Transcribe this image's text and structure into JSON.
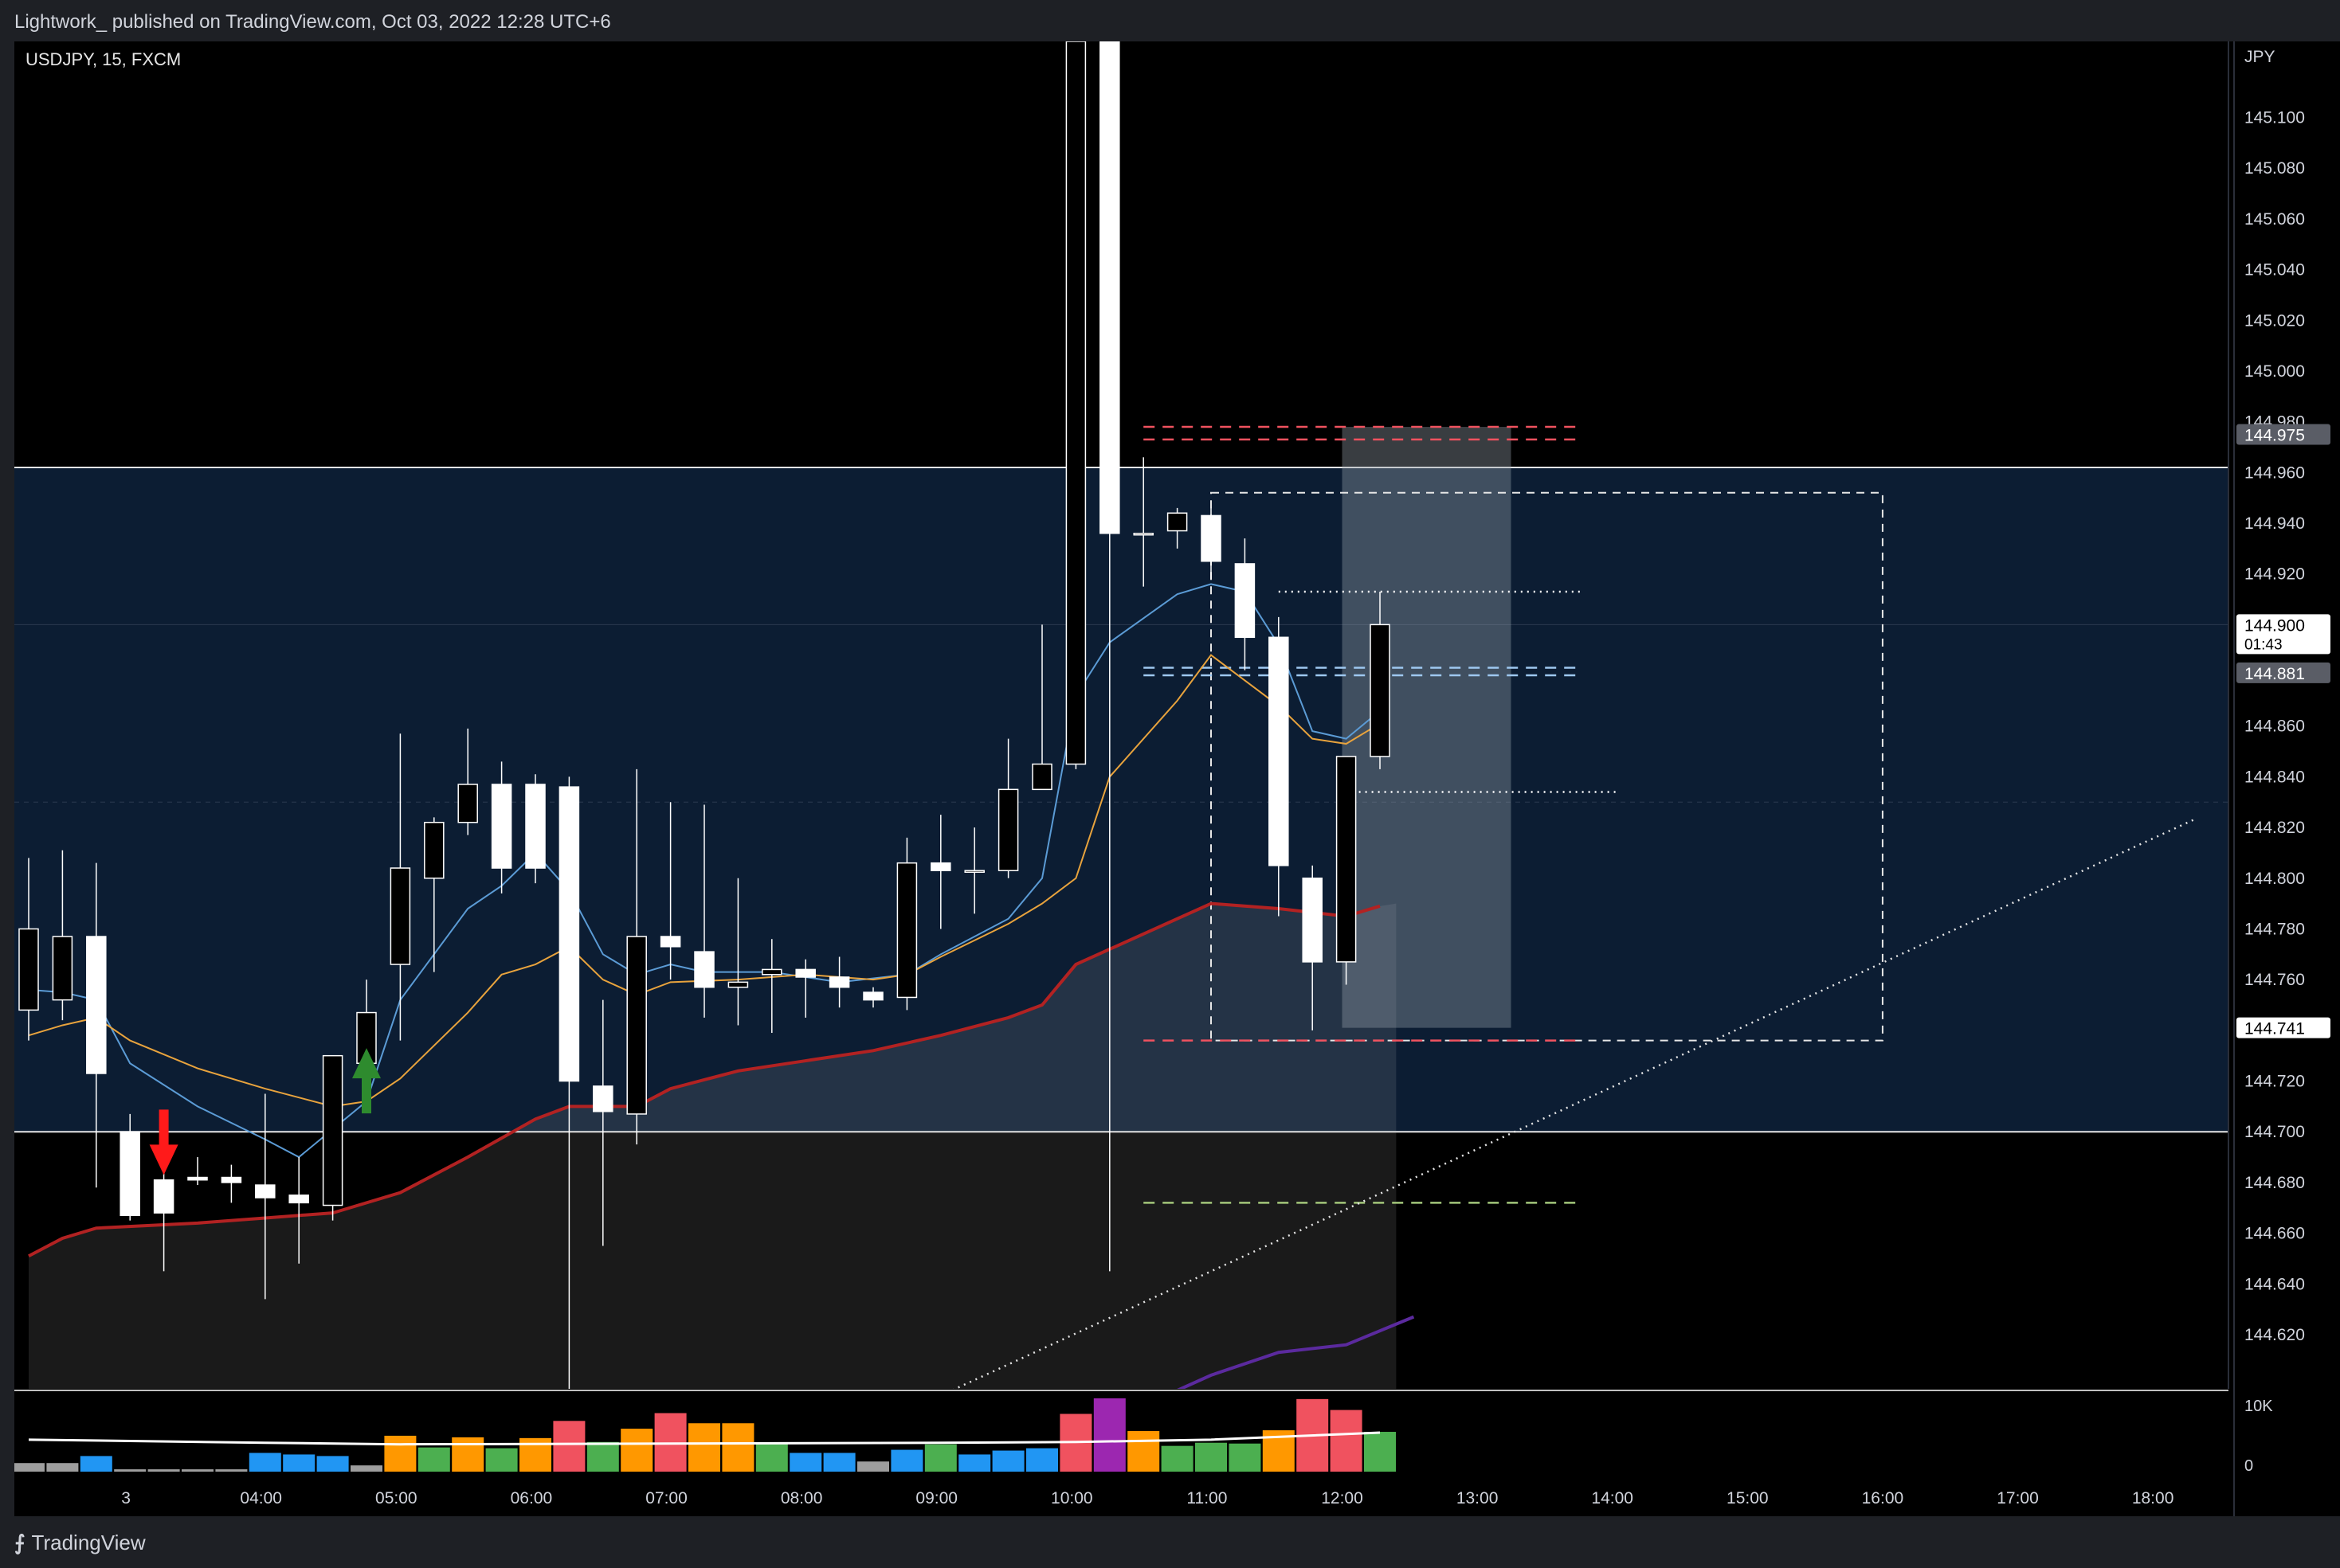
{
  "header": {
    "published_text": "Lightwork_ published on TradingView.com, Oct 03, 2022 12:28 UTC+6"
  },
  "footer": {
    "brand": "TradingView",
    "brand_icon": "tradingview-logo-icon"
  },
  "colors": {
    "background": "#000000",
    "zone_fill": "#0c1d33",
    "candle": "#ffffff",
    "ema_fast": "#5b9bd5",
    "ema_mid": "#e8a33d",
    "ma_slow": "#b22222",
    "ma_200": "#5b2a9e",
    "vol_blue": "#2196f3",
    "vol_orange": "#ff9800",
    "vol_red": "#f0525f",
    "vol_green": "#4caf50",
    "vol_purple": "#9c27b0",
    "vol_gray": "#9e9e9e"
  },
  "chart_data": {
    "type": "candlestick",
    "symbol_label": "USDJPY, 15, FXCM",
    "currency_label": "JPY",
    "ylim": [
      144.598,
      145.13
    ],
    "y_ticks": [
      "145.100",
      "145.080",
      "145.060",
      "145.040",
      "145.020",
      "145.000",
      "144.980",
      "144.960",
      "144.940",
      "144.920",
      "144.900",
      "144.880",
      "144.860",
      "144.840",
      "144.820",
      "144.800",
      "144.780",
      "144.760",
      "144.740",
      "144.720",
      "144.700",
      "144.680",
      "144.660",
      "144.640",
      "144.620"
    ],
    "x_ticks": [
      {
        "label": "3",
        "t": 3.0
      },
      {
        "label": "04:00",
        "t": 4.0
      },
      {
        "label": "05:00",
        "t": 5.0
      },
      {
        "label": "06:00",
        "t": 6.0
      },
      {
        "label": "07:00",
        "t": 7.0
      },
      {
        "label": "08:00",
        "t": 8.0
      },
      {
        "label": "09:00",
        "t": 9.0
      },
      {
        "label": "10:00",
        "t": 10.0
      },
      {
        "label": "11:00",
        "t": 11.0
      },
      {
        "label": "12:00",
        "t": 12.0
      },
      {
        "label": "13:00",
        "t": 13.0
      },
      {
        "label": "14:00",
        "t": 14.0
      },
      {
        "label": "15:00",
        "t": 15.0
      },
      {
        "label": "16:00",
        "t": 16.0
      },
      {
        "label": "17:00",
        "t": 17.0
      },
      {
        "label": "18:00",
        "t": 18.0
      }
    ],
    "xlim": [
      2.28,
      18.3
    ],
    "candles": [
      {
        "t": 2.28,
        "o": 144.748,
        "h": 144.808,
        "c": 144.78,
        "l": 144.736
      },
      {
        "t": 2.53,
        "o": 144.752,
        "h": 144.811,
        "c": 144.777,
        "l": 144.744
      },
      {
        "t": 2.78,
        "o": 144.777,
        "h": 144.806,
        "c": 144.723,
        "l": 144.678
      },
      {
        "t": 3.03,
        "o": 144.7,
        "h": 144.707,
        "c": 144.667,
        "l": 144.665
      },
      {
        "t": 3.28,
        "o": 144.681,
        "h": 144.685,
        "c": 144.668,
        "l": 144.645
      },
      {
        "t": 3.53,
        "o": 144.682,
        "h": 144.69,
        "c": 144.681,
        "l": 144.679
      },
      {
        "t": 3.78,
        "o": 144.682,
        "h": 144.687,
        "c": 144.68,
        "l": 144.672
      },
      {
        "t": 4.03,
        "o": 144.679,
        "h": 144.715,
        "c": 144.674,
        "l": 144.634
      },
      {
        "t": 4.28,
        "o": 144.675,
        "h": 144.69,
        "c": 144.672,
        "l": 144.648
      },
      {
        "t": 4.53,
        "o": 144.671,
        "h": 144.73,
        "c": 144.73,
        "l": 144.665
      },
      {
        "t": 4.78,
        "o": 144.727,
        "h": 144.76,
        "c": 144.747,
        "l": 144.723
      },
      {
        "t": 5.03,
        "o": 144.766,
        "h": 144.857,
        "c": 144.804,
        "l": 144.736
      },
      {
        "t": 5.28,
        "o": 144.8,
        "h": 144.824,
        "c": 144.822,
        "l": 144.763
      },
      {
        "t": 5.53,
        "o": 144.822,
        "h": 144.859,
        "c": 144.837,
        "l": 144.817
      },
      {
        "t": 5.78,
        "o": 144.837,
        "h": 144.846,
        "c": 144.804,
        "l": 144.794
      },
      {
        "t": 6.03,
        "o": 144.837,
        "h": 144.841,
        "c": 144.804,
        "l": 144.798
      },
      {
        "t": 6.28,
        "o": 144.836,
        "h": 144.84,
        "c": 144.72,
        "l": 144.598
      },
      {
        "t": 6.53,
        "o": 144.718,
        "h": 144.752,
        "c": 144.708,
        "l": 144.655
      },
      {
        "t": 6.78,
        "o": 144.707,
        "h": 144.843,
        "c": 144.777,
        "l": 144.695
      },
      {
        "t": 7.03,
        "o": 144.777,
        "h": 144.83,
        "c": 144.773,
        "l": 144.76
      },
      {
        "t": 7.28,
        "o": 144.771,
        "h": 144.829,
        "c": 144.757,
        "l": 144.745
      },
      {
        "t": 7.53,
        "o": 144.757,
        "h": 144.8,
        "c": 144.759,
        "l": 144.742
      },
      {
        "t": 7.78,
        "o": 144.762,
        "h": 144.776,
        "c": 144.764,
        "l": 144.739
      },
      {
        "t": 8.03,
        "o": 144.764,
        "h": 144.768,
        "c": 144.761,
        "l": 144.745
      },
      {
        "t": 8.28,
        "o": 144.761,
        "h": 144.769,
        "c": 144.757,
        "l": 144.749
      },
      {
        "t": 8.53,
        "o": 144.755,
        "h": 144.757,
        "c": 144.752,
        "l": 144.749
      },
      {
        "t": 8.78,
        "o": 144.753,
        "h": 144.816,
        "c": 144.806,
        "l": 144.748
      },
      {
        "t": 9.03,
        "o": 144.806,
        "h": 144.825,
        "c": 144.803,
        "l": 144.78
      },
      {
        "t": 9.28,
        "o": 144.803,
        "h": 144.82,
        "c": 144.803,
        "l": 144.786
      },
      {
        "t": 9.53,
        "o": 144.803,
        "h": 144.855,
        "c": 144.835,
        "l": 144.8
      },
      {
        "t": 9.78,
        "o": 144.835,
        "h": 144.9,
        "c": 144.845,
        "l": 144.835
      },
      {
        "t": 10.03,
        "o": 144.845,
        "h": 145.13,
        "c": 145.13,
        "l": 144.843
      },
      {
        "t": 10.28,
        "o": 145.13,
        "h": 145.13,
        "c": 144.936,
        "l": 144.645
      },
      {
        "t": 10.53,
        "o": 144.936,
        "h": 144.966,
        "c": 144.936,
        "l": 144.915
      },
      {
        "t": 10.78,
        "o": 144.937,
        "h": 144.946,
        "c": 144.944,
        "l": 144.93
      },
      {
        "t": 11.03,
        "o": 144.943,
        "h": 144.946,
        "c": 144.925,
        "l": 144.918
      },
      {
        "t": 11.28,
        "o": 144.924,
        "h": 144.934,
        "c": 144.895,
        "l": 144.882
      },
      {
        "t": 11.53,
        "o": 144.895,
        "h": 144.903,
        "c": 144.805,
        "l": 144.785
      },
      {
        "t": 11.78,
        "o": 144.8,
        "h": 144.805,
        "c": 144.767,
        "l": 144.74
      },
      {
        "t": 12.03,
        "o": 144.767,
        "h": 144.848,
        "c": 144.848,
        "l": 144.758
      },
      {
        "t": 12.28,
        "o": 144.848,
        "h": 144.913,
        "c": 144.9,
        "l": 144.843
      }
    ],
    "series": [
      {
        "name": "",
        "color": "#5b9bd5",
        "points": [
          [
            2.28,
            144.756
          ],
          [
            2.53,
            144.755
          ],
          [
            2.78,
            144.752
          ],
          [
            3.03,
            144.727
          ],
          [
            3.53,
            144.71
          ],
          [
            4.03,
            144.697
          ],
          [
            4.28,
            144.69
          ],
          [
            4.78,
            144.712
          ],
          [
            5.03,
            144.752
          ],
          [
            5.53,
            144.788
          ],
          [
            5.78,
            144.797
          ],
          [
            6.03,
            144.81
          ],
          [
            6.28,
            144.795
          ],
          [
            6.53,
            144.77
          ],
          [
            6.78,
            144.762
          ],
          [
            7.03,
            144.766
          ],
          [
            7.28,
            144.763
          ],
          [
            7.78,
            144.763
          ],
          [
            8.28,
            144.759
          ],
          [
            8.78,
            144.762
          ],
          [
            9.03,
            144.77
          ],
          [
            9.53,
            144.784
          ],
          [
            9.78,
            144.8
          ],
          [
            10.03,
            144.872
          ],
          [
            10.28,
            144.893
          ],
          [
            10.78,
            144.912
          ],
          [
            11.03,
            144.916
          ],
          [
            11.28,
            144.913
          ],
          [
            11.53,
            144.892
          ],
          [
            11.78,
            144.858
          ],
          [
            12.03,
            144.855
          ],
          [
            12.28,
            144.866
          ]
        ]
      },
      {
        "name": "",
        "color": "#e8a33d",
        "points": [
          [
            2.28,
            144.738
          ],
          [
            2.53,
            144.742
          ],
          [
            2.78,
            144.745
          ],
          [
            3.03,
            144.736
          ],
          [
            3.53,
            144.725
          ],
          [
            4.03,
            144.717
          ],
          [
            4.53,
            144.71
          ],
          [
            4.78,
            144.712
          ],
          [
            5.03,
            144.721
          ],
          [
            5.53,
            144.747
          ],
          [
            5.78,
            144.762
          ],
          [
            6.03,
            144.766
          ],
          [
            6.28,
            144.773
          ],
          [
            6.53,
            144.76
          ],
          [
            6.78,
            144.754
          ],
          [
            7.03,
            144.759
          ],
          [
            7.53,
            144.76
          ],
          [
            8.03,
            144.762
          ],
          [
            8.53,
            144.76
          ],
          [
            8.78,
            144.762
          ],
          [
            9.03,
            144.769
          ],
          [
            9.53,
            144.782
          ],
          [
            9.78,
            144.79
          ],
          [
            10.03,
            144.8
          ],
          [
            10.28,
            144.84
          ],
          [
            10.78,
            144.87
          ],
          [
            11.03,
            144.888
          ],
          [
            11.53,
            144.868
          ],
          [
            11.78,
            144.855
          ],
          [
            12.03,
            144.853
          ],
          [
            12.28,
            144.861
          ]
        ]
      },
      {
        "name": "",
        "color": "#b22222",
        "points": [
          [
            2.28,
            144.651
          ],
          [
            2.53,
            144.658
          ],
          [
            2.78,
            144.662
          ],
          [
            3.53,
            144.664
          ],
          [
            4.03,
            144.666
          ],
          [
            4.53,
            144.668
          ],
          [
            5.03,
            144.676
          ],
          [
            5.53,
            144.69
          ],
          [
            6.03,
            144.705
          ],
          [
            6.28,
            144.71
          ],
          [
            6.78,
            144.71
          ],
          [
            7.03,
            144.717
          ],
          [
            7.53,
            144.724
          ],
          [
            8.03,
            144.728
          ],
          [
            8.53,
            144.732
          ],
          [
            9.03,
            144.738
          ],
          [
            9.53,
            144.745
          ],
          [
            9.78,
            144.75
          ],
          [
            10.03,
            144.766
          ],
          [
            10.53,
            144.778
          ],
          [
            11.03,
            144.79
          ],
          [
            11.53,
            144.788
          ],
          [
            12.03,
            144.785
          ],
          [
            12.28,
            144.789
          ]
        ]
      },
      {
        "name": "",
        "color": "#5b2a9e",
        "points": [
          [
            10.78,
            144.598
          ],
          [
            11.03,
            144.604
          ],
          [
            11.53,
            144.613
          ],
          [
            12.03,
            144.616
          ],
          [
            12.53,
            144.627
          ]
        ]
      }
    ],
    "zone_range": [
      144.7,
      144.962
    ],
    "levels": [
      {
        "price": 144.978,
        "color": "#f0525f",
        "style": "dashed",
        "from": 10.53,
        "to": 13.78
      },
      {
        "price": 144.973,
        "color": "#f0525f",
        "style": "dashed",
        "from": 10.53,
        "to": 13.78
      },
      {
        "price": 144.883,
        "color": "#9ec8f0",
        "style": "dashed",
        "from": 10.53,
        "to": 13.78
      },
      {
        "price": 144.88,
        "color": "#9ec8f0",
        "style": "dashed",
        "from": 10.53,
        "to": 13.78
      },
      {
        "price": 144.736,
        "color": "#f0525f",
        "style": "dashed",
        "from": 10.53,
        "to": 13.78
      },
      {
        "price": 144.672,
        "color": "#a3c77b",
        "style": "dashed",
        "from": 10.53,
        "to": 13.78
      },
      {
        "price": 144.913,
        "color": "#ffffff",
        "style": "dotted",
        "from": 11.53,
        "to": 13.78
      },
      {
        "price": 144.834,
        "color": "#ffffff",
        "style": "dotted",
        "from": 12.03,
        "to": 14.03
      }
    ],
    "trendline": {
      "from": [
        9.03,
        144.596
      ],
      "to": [
        18.3,
        144.823
      ]
    },
    "dashed_box": {
      "t0": 11.03,
      "t1": 16.0,
      "p_low": 144.736,
      "p_high": 144.952
    },
    "gray_box": {
      "t0": 12.0,
      "t1": 13.25,
      "p_low": 144.741,
      "p_high": 144.978
    },
    "price_labels": [
      {
        "text": "144.975",
        "price": 144.975,
        "bg": "#5a5d66",
        "fg": "#ffffff"
      },
      {
        "text": "144.900",
        "sub": "01:43",
        "price": 144.9,
        "bg": "#ffffff",
        "fg": "#000000"
      },
      {
        "text": "144.881",
        "price": 144.881,
        "bg": "#5a5d66",
        "fg": "#ffffff"
      },
      {
        "text": "144.741",
        "price": 144.741,
        "bg": "#ffffff",
        "fg": "#000000"
      }
    ],
    "arrows": [
      {
        "dir": "down",
        "t": 3.28,
        "price_tip": 144.683,
        "color": "#ff1a1a"
      },
      {
        "dir": "up",
        "t": 4.78,
        "price_tip": 144.733,
        "color": "#2e8b2e"
      }
    ],
    "volume": {
      "axis_labels": [
        "10K",
        "0"
      ],
      "max": 10000,
      "bars": [
        {
          "t": 2.28,
          "v": 1100,
          "c": "#9e9e9e"
        },
        {
          "t": 2.53,
          "v": 1100,
          "c": "#9e9e9e"
        },
        {
          "t": 2.78,
          "v": 2000,
          "c": "#2196f3"
        },
        {
          "t": 3.03,
          "v": 300,
          "c": "#9e9e9e"
        },
        {
          "t": 3.28,
          "v": 300,
          "c": "#9e9e9e"
        },
        {
          "t": 3.53,
          "v": 300,
          "c": "#9e9e9e"
        },
        {
          "t": 3.78,
          "v": 300,
          "c": "#9e9e9e"
        },
        {
          "t": 4.03,
          "v": 2400,
          "c": "#2196f3"
        },
        {
          "t": 4.28,
          "v": 2200,
          "c": "#2196f3"
        },
        {
          "t": 4.53,
          "v": 2000,
          "c": "#2196f3"
        },
        {
          "t": 4.78,
          "v": 800,
          "c": "#9e9e9e"
        },
        {
          "t": 5.03,
          "v": 4600,
          "c": "#ff9800"
        },
        {
          "t": 5.28,
          "v": 3100,
          "c": "#4caf50"
        },
        {
          "t": 5.53,
          "v": 4400,
          "c": "#ff9800"
        },
        {
          "t": 5.78,
          "v": 3000,
          "c": "#4caf50"
        },
        {
          "t": 6.03,
          "v": 4300,
          "c": "#ff9800"
        },
        {
          "t": 6.28,
          "v": 6500,
          "c": "#f0525f"
        },
        {
          "t": 6.53,
          "v": 3800,
          "c": "#4caf50"
        },
        {
          "t": 6.78,
          "v": 5500,
          "c": "#ff9800"
        },
        {
          "t": 7.03,
          "v": 7500,
          "c": "#f0525f"
        },
        {
          "t": 7.28,
          "v": 6200,
          "c": "#ff9800"
        },
        {
          "t": 7.53,
          "v": 6200,
          "c": "#ff9800"
        },
        {
          "t": 7.78,
          "v": 3600,
          "c": "#4caf50"
        },
        {
          "t": 8.03,
          "v": 2400,
          "c": "#2196f3"
        },
        {
          "t": 8.28,
          "v": 2400,
          "c": "#2196f3"
        },
        {
          "t": 8.53,
          "v": 1300,
          "c": "#9e9e9e"
        },
        {
          "t": 8.78,
          "v": 2800,
          "c": "#2196f3"
        },
        {
          "t": 9.03,
          "v": 3500,
          "c": "#4caf50"
        },
        {
          "t": 9.28,
          "v": 2200,
          "c": "#2196f3"
        },
        {
          "t": 9.53,
          "v": 2700,
          "c": "#2196f3"
        },
        {
          "t": 9.78,
          "v": 3000,
          "c": "#2196f3"
        },
        {
          "t": 10.03,
          "v": 7400,
          "c": "#f0525f"
        },
        {
          "t": 10.28,
          "v": 9400,
          "c": "#9c27b0"
        },
        {
          "t": 10.53,
          "v": 5200,
          "c": "#ff9800"
        },
        {
          "t": 10.78,
          "v": 3300,
          "c": "#4caf50"
        },
        {
          "t": 11.03,
          "v": 3700,
          "c": "#4caf50"
        },
        {
          "t": 11.28,
          "v": 3600,
          "c": "#4caf50"
        },
        {
          "t": 11.53,
          "v": 5300,
          "c": "#ff9800"
        },
        {
          "t": 11.78,
          "v": 9300,
          "c": "#f0525f"
        },
        {
          "t": 12.03,
          "v": 7900,
          "c": "#f0525f"
        },
        {
          "t": 12.28,
          "v": 5100,
          "c": "#4caf50"
        }
      ],
      "ma_points": [
        [
          2.28,
          4100
        ],
        [
          4.03,
          3700
        ],
        [
          5.03,
          3500
        ],
        [
          7.03,
          3600
        ],
        [
          9.03,
          3700
        ],
        [
          10.03,
          3800
        ],
        [
          11.03,
          4100
        ],
        [
          12.28,
          5000
        ]
      ]
    }
  }
}
